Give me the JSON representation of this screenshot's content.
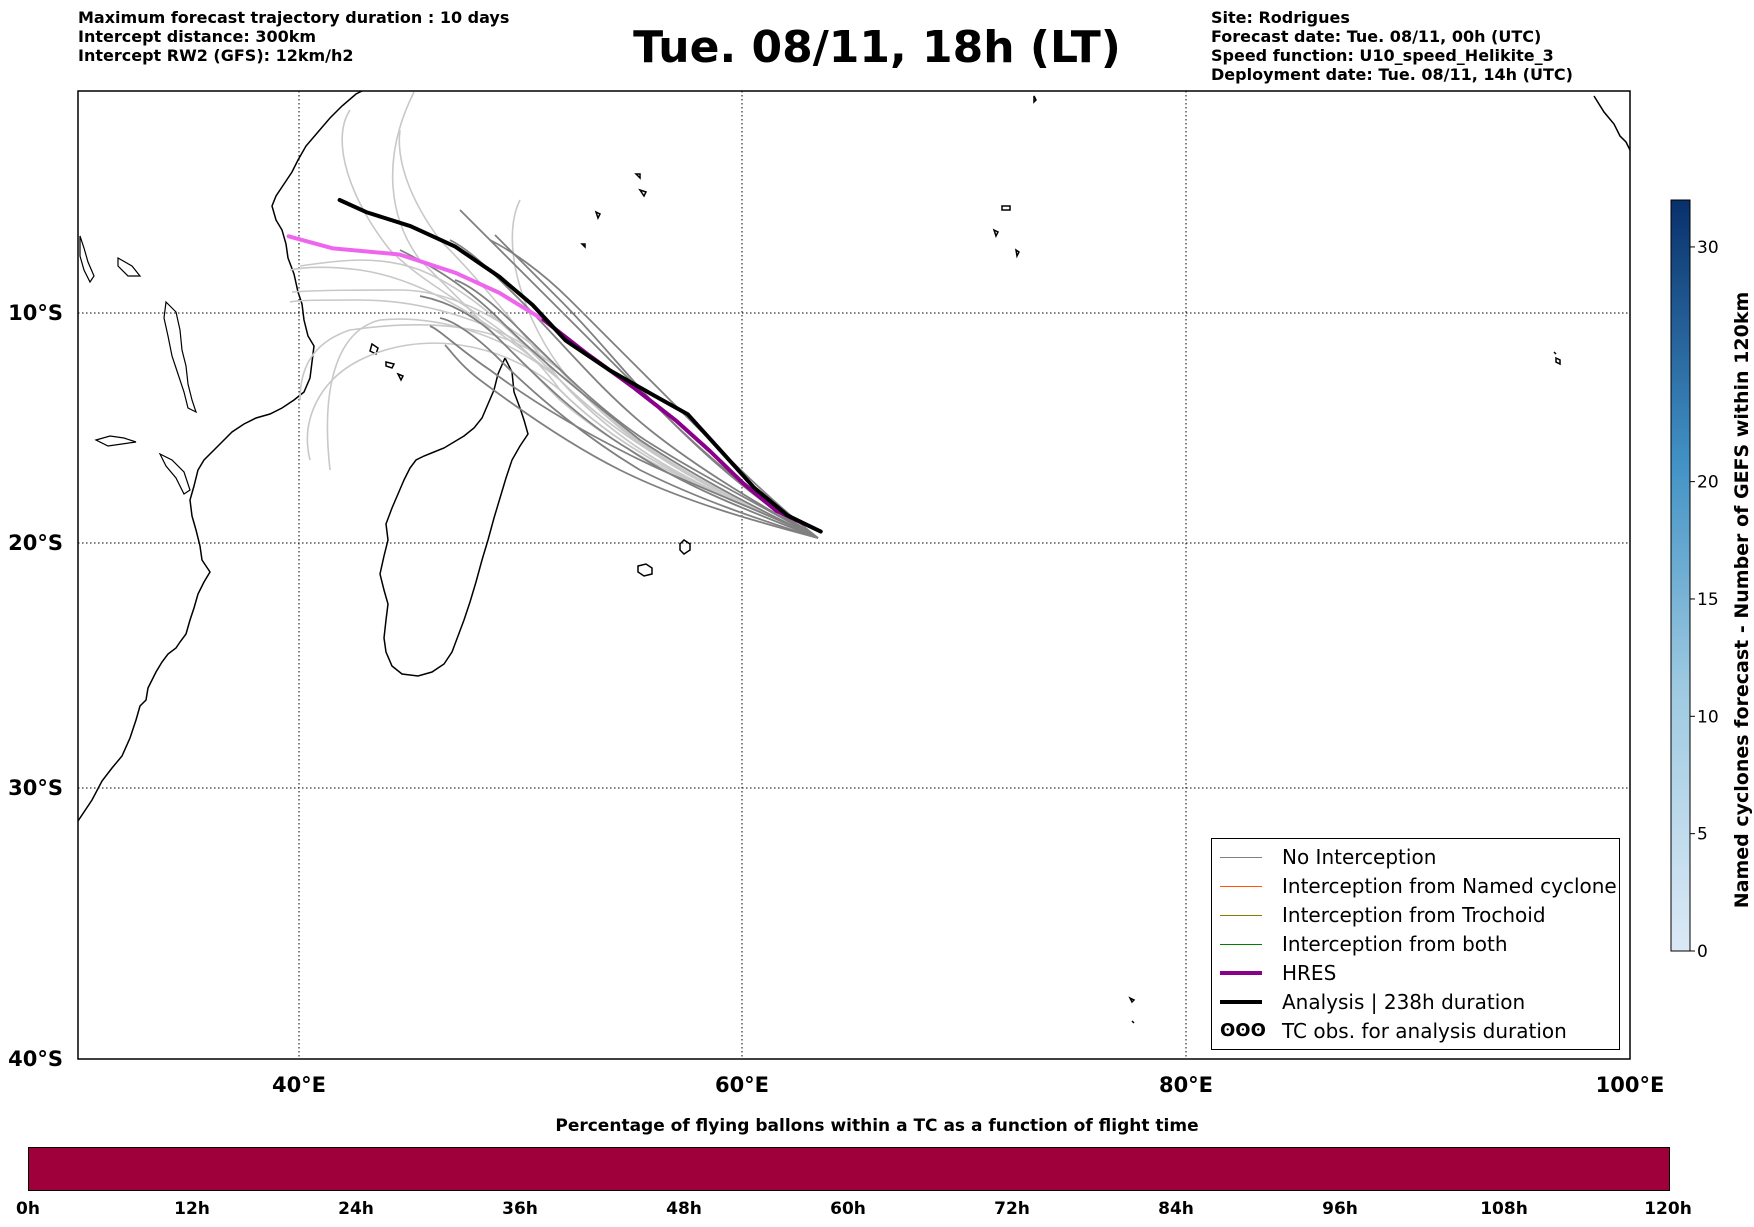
{
  "header_left": [
    "Maximum forecast trajectory duration : 10 days",
    "Intercept distance: 300km",
    "Intercept RW2 (GFS):  12km/h2"
  ],
  "title": "Tue. 08/11, 18h (LT)",
  "header_right": [
    "Site: Rodrigues",
    "Forecast date: Tue. 08/11, 00h (UTC)",
    "Speed function: U10_speed_Helikite_3",
    "Deployment date: Tue. 08/11, 14h (UTC)"
  ],
  "map": {
    "lon_range": [
      30,
      100
    ],
    "lat_range": [
      -40,
      1
    ],
    "lon_ticks": [
      {
        "value": 40,
        "label": "40°E"
      },
      {
        "value": 60,
        "label": "60°E"
      },
      {
        "value": 80,
        "label": "80°E"
      },
      {
        "value": 100,
        "label": "100°E"
      }
    ],
    "lat_ticks": [
      {
        "value": -10,
        "label": "10°S"
      },
      {
        "value": -20,
        "label": "20°S"
      },
      {
        "value": -30,
        "label": "30°S"
      },
      {
        "value": -40,
        "label": "40°S"
      }
    ],
    "tracks": {
      "analysis": [
        [
          41.8,
          -4.4
        ],
        [
          43,
          -5.0
        ],
        [
          45,
          -5.7
        ],
        [
          47,
          -6.7
        ],
        [
          49,
          -8.2
        ],
        [
          50.5,
          -9.6
        ],
        [
          52,
          -11.2
        ],
        [
          54,
          -12.5
        ],
        [
          56,
          -13.6
        ],
        [
          57.5,
          -14.4
        ],
        [
          59,
          -16.0
        ],
        [
          60.5,
          -17.6
        ],
        [
          62,
          -18.8
        ],
        [
          63.5,
          -19.5
        ]
      ],
      "hres": [
        [
          39.5,
          -6.2
        ],
        [
          41.5,
          -6.8
        ],
        [
          44.5,
          -7.1
        ],
        [
          47,
          -8.0
        ],
        [
          49,
          -9.0
        ],
        [
          51,
          -10.3
        ],
        [
          53,
          -11.8
        ],
        [
          55,
          -13.2
        ],
        [
          57,
          -14.7
        ],
        [
          58.5,
          -16.0
        ],
        [
          60,
          -17.4
        ],
        [
          61.5,
          -18.6
        ],
        [
          63.5,
          -19.5
        ]
      ]
    },
    "colors": {
      "no_interception": "#808080",
      "named_cyclone": "#ff5500",
      "trochoid": "#7f7f00",
      "both": "#008000",
      "hres": "#8b008b",
      "analysis": "#000000",
      "ensemble_far": "#c8c8c8"
    }
  },
  "legend": {
    "items": [
      {
        "label": "No Interception",
        "color": "#808080",
        "width": 1
      },
      {
        "label": "Interception from Named cyclone",
        "color": "#ff5500",
        "width": 1
      },
      {
        "label": "Interception from Trochoid",
        "color": "#7f7f00",
        "width": 1
      },
      {
        "label": "Interception from both",
        "color": "#008000",
        "width": 1
      },
      {
        "label": "HRES",
        "color": "#8b008b",
        "width": 4
      },
      {
        "label": "Analysis | 238h duration",
        "color": "#000000",
        "width": 4
      },
      {
        "label": "TC obs. for analysis duration",
        "color": "#000000",
        "width": 0,
        "symbol": "ʘʘʘ"
      }
    ]
  },
  "colorbar_vertical": {
    "label": "Named cyclones forecast - Number of GEFS within 120km",
    "ticks": [
      {
        "value": 0,
        "label": "0"
      },
      {
        "value": 5,
        "label": "5"
      },
      {
        "value": 10,
        "label": "10"
      },
      {
        "value": 15,
        "label": "15"
      },
      {
        "value": 20,
        "label": "20"
      },
      {
        "value": 30,
        "label": "30"
      }
    ],
    "min": 0,
    "max": 32,
    "color_low": "#dbe9f6",
    "color_high": "#08306b"
  },
  "colorbar_horizontal": {
    "title": "Percentage of flying ballons within a TC as a function of flight time",
    "fill_color": "#9f003c",
    "ticks": [
      "0h",
      "12h",
      "24h",
      "36h",
      "48h",
      "60h",
      "72h",
      "84h",
      "96h",
      "108h",
      "120h"
    ]
  }
}
